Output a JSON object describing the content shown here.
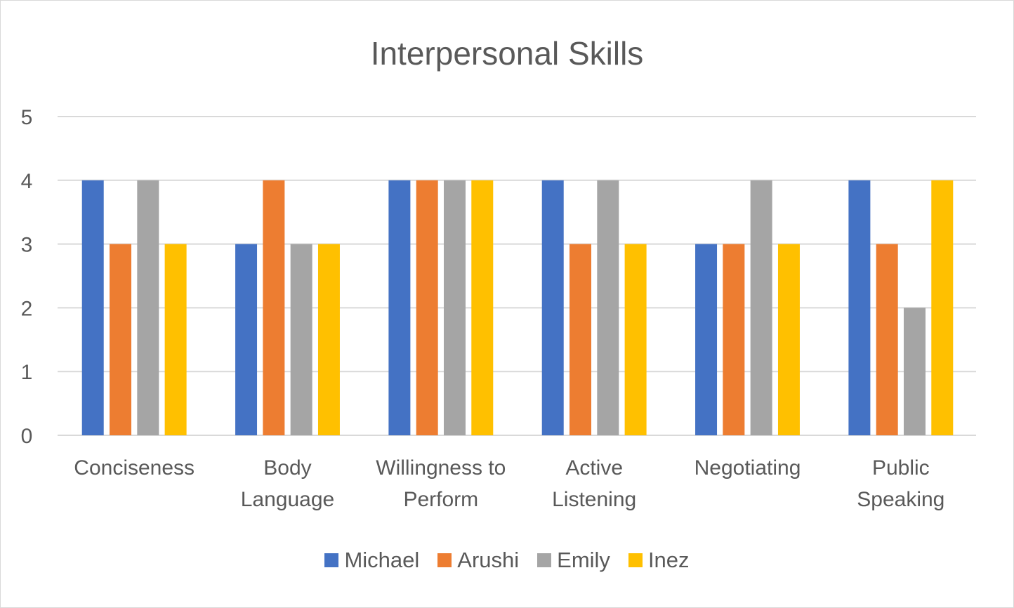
{
  "chart_data": {
    "type": "bar",
    "title": "Interpersonal Skills",
    "xlabel": "",
    "ylabel": "",
    "ylim": [
      0,
      5
    ],
    "yticks": [
      "0",
      "1",
      "2",
      "3",
      "4",
      "5"
    ],
    "grid": true,
    "legend_position": "bottom",
    "categories": [
      [
        "Conciseness"
      ],
      [
        "Body",
        "Language"
      ],
      [
        "Willingness to",
        "Perform"
      ],
      [
        "Active",
        "Listening"
      ],
      [
        "Negotiating"
      ],
      [
        "Public",
        "Speaking"
      ]
    ],
    "series": [
      {
        "name": "Michael",
        "color": "#4472c4",
        "values": [
          4,
          3,
          4,
          4,
          3,
          4
        ]
      },
      {
        "name": "Arushi",
        "color": "#ed7d31",
        "values": [
          3,
          4,
          4,
          3,
          3,
          3
        ]
      },
      {
        "name": "Emily",
        "color": "#a5a5a5",
        "values": [
          4,
          3,
          4,
          4,
          4,
          2
        ]
      },
      {
        "name": "Inez",
        "color": "#ffc000",
        "values": [
          3,
          3,
          4,
          3,
          3,
          4
        ]
      }
    ]
  }
}
